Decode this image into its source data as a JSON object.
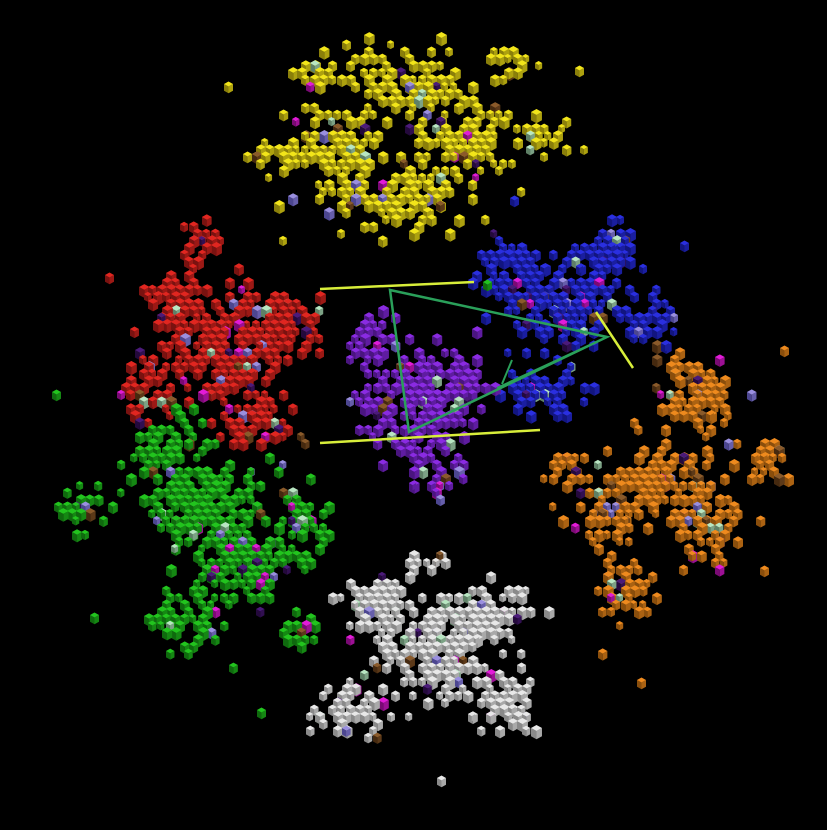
{
  "scene": {
    "background": "#000000",
    "clusters": [
      {
        "id": "yellow-cluster",
        "color": "#f2e51a",
        "shade": "#8a7f0a",
        "size": "large"
      },
      {
        "id": "red-cluster",
        "color": "#e02620",
        "shade": "#7a1210",
        "size": "large"
      },
      {
        "id": "blue-cluster",
        "color": "#2a2fe0",
        "shade": "#121580",
        "size": "large"
      },
      {
        "id": "orange-cluster",
        "color": "#ee8a1e",
        "shade": "#8a4e0c",
        "size": "large"
      },
      {
        "id": "green-cluster",
        "color": "#22c41e",
        "shade": "#0f6a0e",
        "size": "large"
      },
      {
        "id": "white-cluster",
        "color": "#e8e8e8",
        "shade": "#8a8a8a",
        "size": "large"
      },
      {
        "id": "purple-cluster",
        "color": "#8a2be2",
        "shade": "#4a1580",
        "size": "medium"
      }
    ],
    "accent_colors": {
      "magenta": "#e21bd8",
      "pale_green": "#b8e6c2",
      "lavender": "#9a8fe0",
      "dark_purple": "#4b1a7a",
      "brown": "#8a5a2a"
    },
    "overlay": {
      "guide_line_color": "#d8ee3a",
      "triangle_color": "#2aa05a"
    }
  }
}
